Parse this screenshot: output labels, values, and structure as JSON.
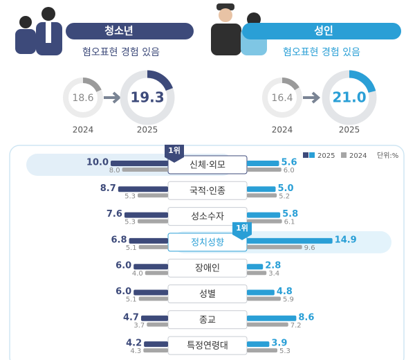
{
  "youth": {
    "label": "청소년",
    "subtitle": "혐오표현 경험 있음",
    "color": "#3d4a7a",
    "donuts": [
      {
        "year": "2024",
        "value": 18.6,
        "label": "18.6"
      },
      {
        "year": "2025",
        "value": 19.3,
        "label": "19.3"
      }
    ]
  },
  "adult": {
    "label": "성인",
    "subtitle": "혐오표현 경험 있음",
    "color": "#2a9fd6",
    "donuts": [
      {
        "year": "2024",
        "value": 16.4,
        "label": "16.4"
      },
      {
        "year": "2025",
        "value": 21,
        "label": "21.0"
      }
    ]
  },
  "chart_data": {
    "type": "bar",
    "unit": "단위:%",
    "badge": "1위",
    "categories": [
      "신체·외모",
      "국적·인종",
      "성소수자",
      "정치성향",
      "장애인",
      "성별",
      "종교",
      "특정연령대"
    ],
    "series": [
      {
        "name": "2025",
        "group": "청소년",
        "color": "#3d4a7a",
        "values": [
          10,
          8.7,
          7.6,
          6.8,
          6,
          6,
          4.7,
          4.2
        ],
        "value_labels": [
          "10.0",
          "8.7",
          "7.6",
          "6.8",
          "6.0",
          "6.0",
          "4.7",
          "4.2"
        ]
      },
      {
        "name": "2024",
        "group": "청소년",
        "color": "#a6a6a6",
        "values": [
          8,
          5.3,
          5.3,
          5.1,
          4,
          5.1,
          3.7,
          4.3
        ],
        "value_labels": [
          "8.0",
          "5.3",
          "5.3",
          "5.1",
          "4.0",
          "5.1",
          "3.7",
          "4.3"
        ]
      },
      {
        "name": "2025",
        "group": "성인",
        "color": "#2a9fd6",
        "values": [
          5.6,
          5,
          5.8,
          14.9,
          2.8,
          4.8,
          8.6,
          3.9
        ],
        "value_labels": [
          "5.6",
          "5.0",
          "5.8",
          "14.9",
          "2.8",
          "4.8",
          "8.6",
          "3.9"
        ]
      },
      {
        "name": "2024",
        "group": "성인",
        "color": "#a6a6a6",
        "values": [
          6,
          5.2,
          6.1,
          9.6,
          3.4,
          5.9,
          7.2,
          5.3
        ],
        "value_labels": [
          "6.0",
          "5.2",
          "6.1",
          "9.6",
          "3.4",
          "5.9",
          "7.2",
          "5.3"
        ]
      }
    ]
  }
}
